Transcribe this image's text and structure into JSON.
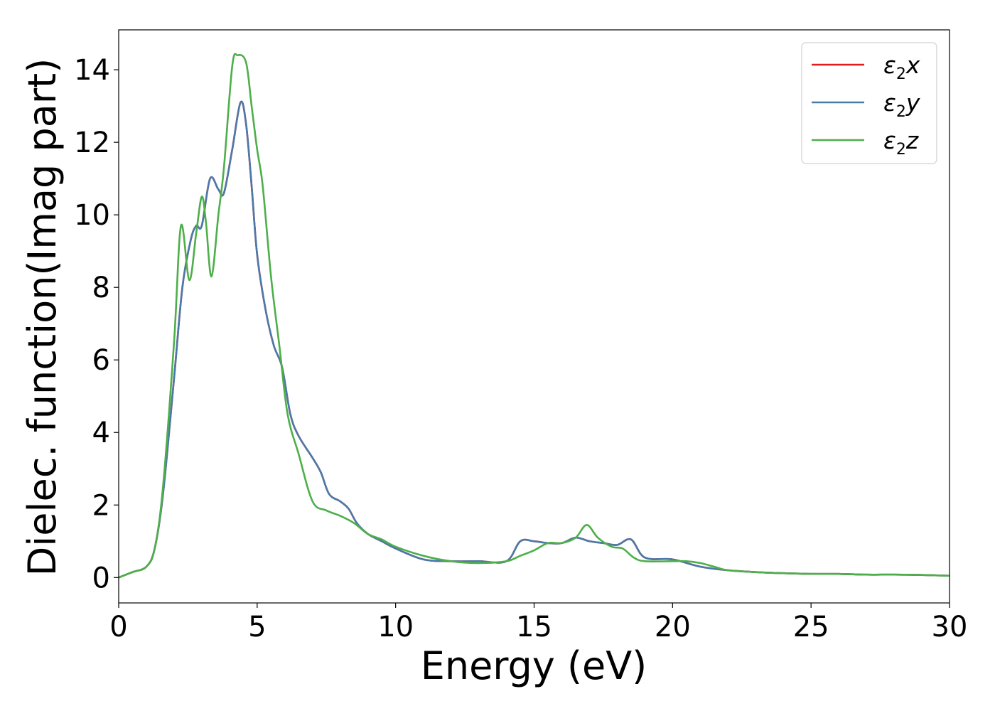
{
  "chart_data": {
    "type": "line",
    "xlabel": "Energy (eV)",
    "ylabel": "Dielec. function(Imag part)",
    "xlim": [
      0,
      30
    ],
    "ylim": [
      -0.7,
      15.1
    ],
    "xticks": [
      0,
      5,
      10,
      15,
      20,
      25,
      30
    ],
    "yticks": [
      0,
      2,
      4,
      6,
      8,
      10,
      12,
      14
    ],
    "grid": false,
    "legend_position": "top-right",
    "series": [
      {
        "name": "ε2x",
        "legend": {
          "base": "ε",
          "sub": "2",
          "suffix": "x"
        },
        "color": "#e41a1c",
        "x": [
          0,
          0.5,
          1,
          1.3,
          1.6,
          2,
          2.3,
          2.6,
          2.8,
          3,
          3.3,
          3.6,
          3.8,
          4.1,
          4.4,
          4.6,
          4.8,
          5,
          5.3,
          5.6,
          5.9,
          6.2,
          6.5,
          7,
          7.3,
          7.6,
          8,
          8.3,
          8.6,
          9,
          9.5,
          10,
          11,
          12,
          13,
          14,
          14.5,
          15,
          15.5,
          16,
          16.5,
          17,
          17.5,
          18,
          18.5,
          19,
          20,
          21,
          22,
          23,
          24,
          25,
          26,
          27,
          28,
          29,
          30
        ],
        "y": [
          0,
          0.15,
          0.3,
          0.8,
          2.3,
          5.5,
          8.0,
          9.3,
          9.7,
          9.7,
          11.0,
          10.7,
          10.6,
          11.8,
          13.1,
          12.5,
          10.8,
          8.9,
          7.4,
          6.4,
          5.8,
          4.5,
          3.9,
          3.3,
          2.9,
          2.3,
          2.1,
          1.9,
          1.5,
          1.2,
          1.0,
          0.8,
          0.5,
          0.45,
          0.45,
          0.45,
          1.0,
          1.0,
          0.95,
          0.95,
          1.1,
          1.0,
          0.95,
          0.9,
          1.05,
          0.55,
          0.5,
          0.3,
          0.2,
          0.15,
          0.12,
          0.1,
          0.1,
          0.08,
          0.08,
          0.07,
          0.05
        ]
      },
      {
        "name": "ε2y",
        "legend": {
          "base": "ε",
          "sub": "2",
          "suffix": "y"
        },
        "color": "#4a7aaa",
        "x": [
          0,
          0.5,
          1,
          1.3,
          1.6,
          2,
          2.3,
          2.6,
          2.8,
          3,
          3.3,
          3.6,
          3.8,
          4.1,
          4.4,
          4.6,
          4.8,
          5,
          5.3,
          5.6,
          5.9,
          6.2,
          6.5,
          7,
          7.3,
          7.6,
          8,
          8.3,
          8.6,
          9,
          9.5,
          10,
          11,
          12,
          13,
          14,
          14.5,
          15,
          15.5,
          16,
          16.5,
          17,
          17.5,
          18,
          18.5,
          19,
          20,
          21,
          22,
          23,
          24,
          25,
          26,
          27,
          28,
          29,
          30
        ],
        "y": [
          0,
          0.15,
          0.3,
          0.8,
          2.3,
          5.5,
          8.0,
          9.3,
          9.7,
          9.7,
          11.0,
          10.7,
          10.6,
          11.8,
          13.1,
          12.5,
          10.8,
          8.9,
          7.4,
          6.4,
          5.8,
          4.5,
          3.9,
          3.3,
          2.9,
          2.3,
          2.1,
          1.9,
          1.5,
          1.2,
          1.0,
          0.8,
          0.5,
          0.45,
          0.45,
          0.45,
          1.0,
          1.0,
          0.95,
          0.95,
          1.1,
          1.0,
          0.95,
          0.9,
          1.05,
          0.55,
          0.5,
          0.3,
          0.2,
          0.15,
          0.12,
          0.1,
          0.1,
          0.08,
          0.08,
          0.07,
          0.05
        ]
      },
      {
        "name": "ε2z",
        "legend": {
          "base": "ε",
          "sub": "2",
          "suffix": "z"
        },
        "color": "#4daf4a",
        "x": [
          0,
          0.5,
          1,
          1.3,
          1.6,
          2,
          2.25,
          2.55,
          2.8,
          3,
          3.15,
          3.35,
          3.6,
          3.8,
          4.1,
          4.3,
          4.6,
          4.8,
          5,
          5.2,
          5.5,
          5.8,
          6.1,
          6.5,
          7,
          7.5,
          8,
          8.5,
          9,
          9.5,
          10,
          11,
          12,
          13,
          14,
          14.5,
          15,
          15.5,
          16,
          16.5,
          16.9,
          17.3,
          17.8,
          18.2,
          18.6,
          19,
          20,
          20.5,
          21,
          21.5,
          22,
          23,
          24,
          25,
          26,
          27,
          28,
          29,
          30
        ],
        "y": [
          0,
          0.15,
          0.3,
          0.8,
          2.5,
          6.5,
          9.7,
          8.2,
          9.5,
          10.5,
          9.8,
          8.3,
          10.0,
          11.3,
          14.1,
          14.4,
          14.2,
          13.0,
          11.8,
          10.8,
          8.3,
          6.4,
          4.5,
          3.4,
          2.1,
          1.85,
          1.7,
          1.5,
          1.2,
          1.05,
          0.85,
          0.6,
          0.45,
          0.4,
          0.45,
          0.6,
          0.75,
          0.95,
          0.95,
          1.1,
          1.45,
          1.1,
          0.85,
          0.8,
          0.55,
          0.45,
          0.45,
          0.45,
          0.4,
          0.3,
          0.2,
          0.15,
          0.12,
          0.1,
          0.1,
          0.08,
          0.08,
          0.07,
          0.05
        ]
      }
    ]
  }
}
